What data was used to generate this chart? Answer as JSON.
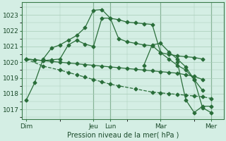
{
  "bg_color": "#d4eee4",
  "grid_color": "#a8ccb8",
  "line_color": "#2a6e3a",
  "marker_color": "#2a6e3a",
  "ylabel": "Pression niveau de la mer( hPa )",
  "yticks": [
    1017,
    1018,
    1019,
    1020,
    1021,
    1022,
    1023
  ],
  "ylim": [
    1016.4,
    1023.8
  ],
  "xtick_labels": [
    "Dim",
    "Jeu",
    "Lun",
    "Mar",
    "Mer"
  ],
  "xtick_positions": [
    0,
    8,
    10,
    16,
    22
  ],
  "xlim": [
    -0.5,
    23.5
  ],
  "vlines": [
    8,
    10,
    16,
    22
  ],
  "lines": [
    {
      "x": [
        0,
        1,
        2,
        3,
        4,
        5,
        6,
        7,
        8,
        9,
        10,
        11,
        12,
        13,
        14,
        15,
        16,
        17,
        18,
        19,
        20,
        21
      ],
      "y": [
        1017.6,
        1018.7,
        1020.2,
        1020.9,
        1021.1,
        1021.4,
        1021.7,
        1022.2,
        1023.3,
        1023.35,
        1022.8,
        1022.7,
        1022.55,
        1022.5,
        1022.45,
        1022.4,
        1020.6,
        1020.2,
        1019.8,
        1019.5,
        1018.9,
        1018.2
      ],
      "marker": "D",
      "markersize": 2.5
    },
    {
      "x": [
        0,
        1,
        2,
        3,
        4,
        5,
        6,
        7,
        8,
        9,
        10,
        11,
        12,
        13,
        14,
        15,
        16,
        17,
        18,
        19,
        20,
        21
      ],
      "y": [
        1020.2,
        1020.15,
        1020.1,
        1020.15,
        1020.2,
        1021.1,
        1021.4,
        1021.15,
        1021.0,
        1022.8,
        1022.8,
        1021.5,
        1021.3,
        1021.2,
        1021.1,
        1021.05,
        1020.6,
        1020.5,
        1020.4,
        1020.35,
        1020.3,
        1020.2
      ],
      "marker": "D",
      "markersize": 2.5
    },
    {
      "x": [
        0,
        1,
        2,
        3,
        4,
        5,
        6,
        7,
        8,
        9,
        10,
        11,
        12,
        13,
        14,
        15,
        16,
        17,
        18,
        19,
        20,
        21
      ],
      "y": [
        1020.2,
        1020.15,
        1020.1,
        1020.05,
        1020.0,
        1019.95,
        1019.9,
        1019.85,
        1019.8,
        1019.75,
        1019.7,
        1019.65,
        1019.6,
        1019.55,
        1019.5,
        1019.45,
        1019.4,
        1019.35,
        1019.3,
        1019.2,
        1019.1,
        1018.9
      ],
      "marker": "D",
      "markersize": 2.5
    },
    {
      "x": [
        0,
        2,
        4,
        5,
        6,
        7,
        8,
        9,
        10,
        11,
        13,
        15,
        16,
        17,
        18,
        19,
        20,
        21,
        22
      ],
      "y": [
        1020.2,
        1019.75,
        1019.5,
        1019.35,
        1019.2,
        1019.05,
        1018.9,
        1018.75,
        1018.6,
        1018.5,
        1018.3,
        1018.1,
        1018.05,
        1018.0,
        1017.95,
        1017.9,
        1017.85,
        1017.8,
        1017.7
      ],
      "marker": "D",
      "markersize": 2.5,
      "linestyle": "--"
    },
    {
      "x": [
        14,
        15,
        16,
        17,
        18,
        19,
        20,
        21,
        22
      ],
      "y": [
        1019.8,
        1021.1,
        1021.2,
        1020.65,
        1020.2,
        1019.7,
        1018.9,
        1017.1,
        1016.8
      ],
      "marker": "D",
      "markersize": 2.5
    },
    {
      "x": [
        18,
        19,
        20,
        21,
        22
      ],
      "y": [
        1020.0,
        1017.6,
        1016.8,
        1017.2,
        1017.2
      ],
      "marker": "D",
      "markersize": 2.5
    }
  ]
}
